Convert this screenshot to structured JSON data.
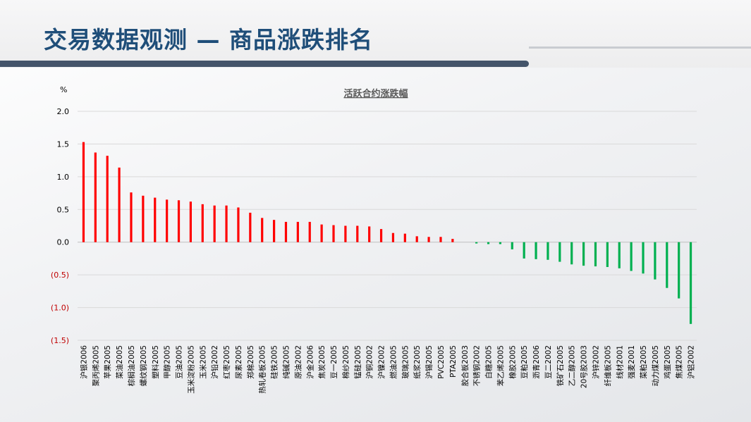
{
  "page": {
    "title": "交易数据观测 — 商品涨跌排名"
  },
  "chart_data": {
    "type": "bar",
    "title": "活跃合约涨跌幅",
    "ylabel": "%",
    "ylim": [
      -1.5,
      2.0
    ],
    "yticks": [
      2.0,
      1.5,
      1.0,
      0.5,
      0.0,
      -0.5,
      -1.0,
      -1.5
    ],
    "ytick_labels": [
      "2.0",
      "1.5",
      "1.0",
      "0.5",
      "0.0",
      "(0.5)",
      "(1.0)",
      "(1.5)"
    ],
    "grid": true,
    "colors": {
      "positive": "#ff0000",
      "negative": "#00b050",
      "negative_tick": "#c00000"
    },
    "categories": [
      "沪银2006",
      "聚丙烯2005",
      "苹果2005",
      "菜油2005",
      "棕榈油2005",
      "螺纹钢2005",
      "塑料2005",
      "甲醇2005",
      "豆油2005",
      "玉米淀粉2005",
      "玉米2005",
      "沪铅2002",
      "红枣2005",
      "尿素2005",
      "郑棉2005",
      "热轧卷板2005",
      "硅铁2005",
      "纯碱2005",
      "原油2002",
      "沪金2006",
      "焦炭2005",
      "豆一2005",
      "棉纱2005",
      "锰硅2005",
      "沪铜2002",
      "沪镍2002",
      "燃油2005",
      "玻璃2005",
      "纸浆2005",
      "沪锡2005",
      "PVC2005",
      "PTA2005",
      "胶合板2003",
      "不锈钢2002",
      "白糖2005",
      "苯乙烯2005",
      "橡胶2005",
      "豆粕2005",
      "沥青2006",
      "豆二2002",
      "铁矿石2005",
      "乙二醇2005",
      "20号胶2003",
      "沪锌2002",
      "纤维板2005",
      "线材2001",
      "强麦2001",
      "菜粕2005",
      "动力煤2005",
      "鸡蛋2005",
      "焦煤2005",
      "沪铝2002"
    ],
    "values": [
      1.53,
      1.37,
      1.32,
      1.14,
      0.76,
      0.71,
      0.68,
      0.65,
      0.64,
      0.62,
      0.58,
      0.56,
      0.56,
      0.53,
      0.45,
      0.37,
      0.34,
      0.31,
      0.31,
      0.31,
      0.27,
      0.26,
      0.25,
      0.25,
      0.24,
      0.2,
      0.14,
      0.13,
      0.09,
      0.08,
      0.08,
      0.05,
      0.0,
      -0.02,
      -0.03,
      -0.03,
      -0.11,
      -0.25,
      -0.26,
      -0.27,
      -0.3,
      -0.34,
      -0.36,
      -0.37,
      -0.38,
      -0.4,
      -0.44,
      -0.48,
      -0.57,
      -0.7,
      -0.86,
      -1.25
    ]
  }
}
